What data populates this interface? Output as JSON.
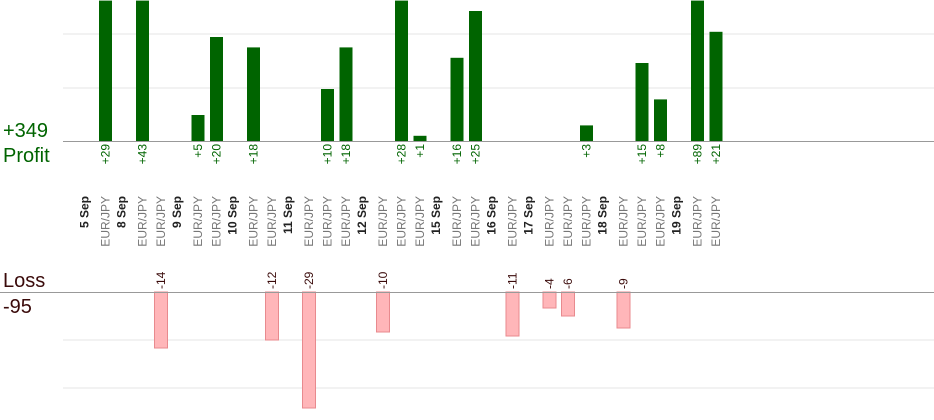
{
  "chart_data": {
    "type": "bar",
    "pair": "EUR/JPY",
    "summary": {
      "profit_total": "+349",
      "profit_label": "Profit",
      "loss_label": "Loss",
      "loss_total": "-95"
    },
    "colors": {
      "profit_bar": "#006400",
      "profit_text": "#006400",
      "loss_bar": "#ffb6b9",
      "loss_bar_edge": "#e88a8e",
      "loss_text": "#3a0a0a",
      "date_text": "#222222",
      "pair_text": "#777777",
      "axis": "#999999",
      "grid": "#e6e6e6"
    },
    "profit_axis_max": 27,
    "loss_axis_max": 29,
    "days": [
      {
        "date": "5 Sep",
        "trades": [
          29
        ]
      },
      {
        "date": "8 Sep",
        "trades": [
          43,
          -14
        ]
      },
      {
        "date": "9 Sep",
        "trades": [
          5,
          20
        ]
      },
      {
        "date": "10 Sep",
        "trades": [
          18,
          -12
        ]
      },
      {
        "date": "11 Sep",
        "trades": [
          -29,
          10,
          18
        ]
      },
      {
        "date": "12 Sep",
        "trades": [
          -10,
          28,
          1
        ]
      },
      {
        "date": "15 Sep",
        "trades": [
          16,
          25
        ]
      },
      {
        "date": "16 Sep",
        "trades": [
          -11
        ]
      },
      {
        "date": "17 Sep",
        "trades": [
          -4,
          -6,
          3
        ]
      },
      {
        "date": "18 Sep",
        "trades": [
          -9,
          15,
          8
        ]
      },
      {
        "date": "19 Sep",
        "trades": [
          89,
          21
        ]
      }
    ]
  }
}
